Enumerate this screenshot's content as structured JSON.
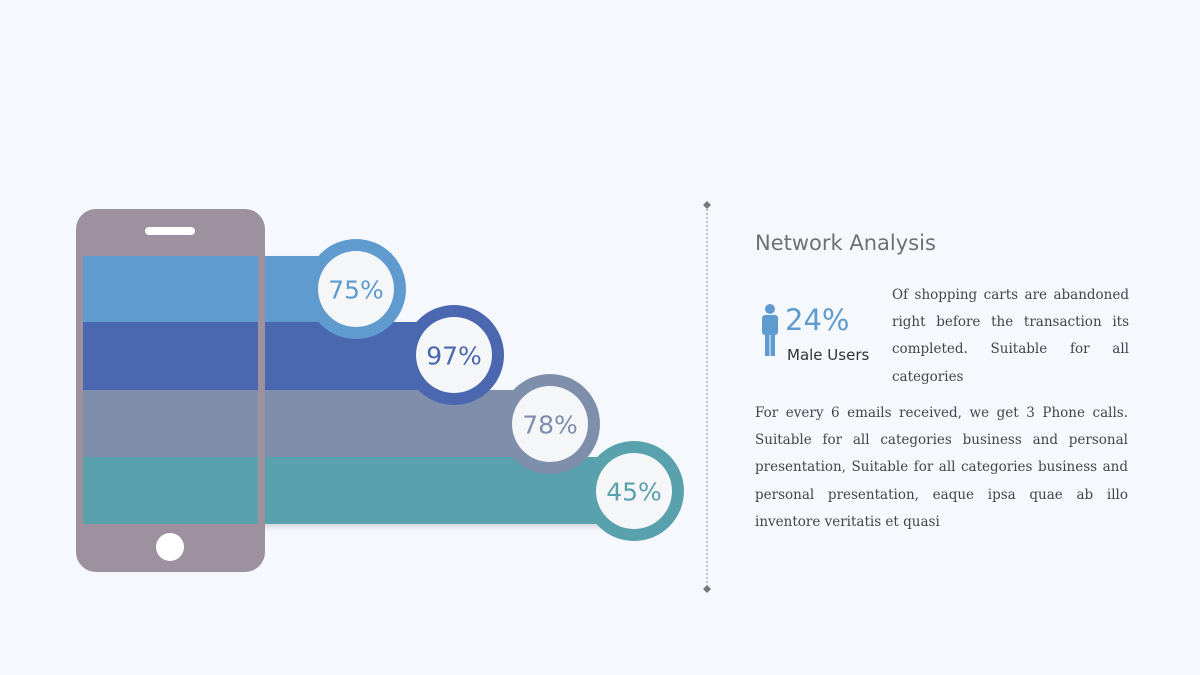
{
  "infographic": {
    "items": [
      {
        "label": "75%"
      },
      {
        "label": "97%"
      },
      {
        "label": "78%"
      },
      {
        "label": "45%"
      }
    ]
  },
  "panel": {
    "title": "Network Analysis",
    "stat": "24%",
    "stat_label": "Male Users",
    "stat_text": "Of shopping carts are abandoned right before the transaction its completed. Suitable for all categories",
    "body": "For every 6 emails received, we get 3 Phone calls. Suitable for all categories business and personal presentation, Suitable for all categories business and personal presentation, eaque ipsa quae ab illo inventore veritatis et quasi"
  }
}
